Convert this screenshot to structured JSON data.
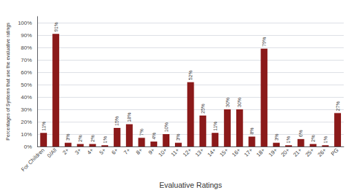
{
  "chart_data": {
    "type": "bar",
    "categories": [
      "For Children",
      "0/All",
      "2+",
      "3+",
      "4+",
      "5+",
      "6+",
      "7+",
      "8+",
      "9+",
      "10+",
      "11+",
      "12+",
      "13+",
      "14+",
      "15+",
      "16+",
      "17+",
      "18+",
      "19+",
      "20+",
      "21+",
      "25+",
      "26+",
      "PG"
    ],
    "values": [
      11,
      91,
      3,
      2,
      2,
      1,
      15,
      18,
      7,
      4,
      10,
      3,
      52,
      25,
      11,
      30,
      30,
      8,
      79,
      3,
      1,
      6,
      2,
      1,
      27
    ],
    "value_labels": [
      "11%",
      "91%",
      "3%",
      "2%",
      "2%",
      "1%",
      "15%",
      "18%",
      "7%",
      "4%",
      "10%",
      "3%",
      "52%",
      "25%",
      "11%",
      "30%",
      "30%",
      "8%",
      "79%",
      "3%",
      "1%",
      "6%",
      "2%",
      "1%",
      "27%"
    ],
    "data_labels": true,
    "color": "#8B1A1A",
    "xlabel": "Evaluative Ratings",
    "ylabel": "Percentages of Systems that use the evaluative ratings",
    "ylim": [
      0,
      105
    ],
    "yticks": [
      {
        "value": 0,
        "label": "0%"
      },
      {
        "value": 10,
        "label": "10%"
      },
      {
        "value": 20,
        "label": "20%"
      },
      {
        "value": 30,
        "label": "30%"
      },
      {
        "value": 40,
        "label": "40%"
      },
      {
        "value": 50,
        "label": "50%"
      },
      {
        "value": 60,
        "label": "60%"
      },
      {
        "value": 70,
        "label": "70%"
      },
      {
        "value": 80,
        "label": "80%"
      },
      {
        "value": 90,
        "label": "90%"
      },
      {
        "value": 100,
        "label": "100%"
      }
    ],
    "grid": true
  }
}
